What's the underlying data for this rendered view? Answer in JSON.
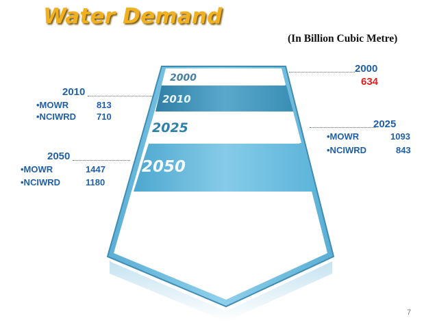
{
  "title": "Water Demand",
  "subtitle": "(In Billion Cubic Metre)",
  "page_number": "7",
  "bands": [
    {
      "label": "2000"
    },
    {
      "label": "2010"
    },
    {
      "label": "2025"
    },
    {
      "label": "2050"
    }
  ],
  "callouts": {
    "y2000": {
      "year": "2000",
      "value": "634"
    },
    "y2010": {
      "year": "2010",
      "rows": [
        {
          "name": "•MOWR",
          "value": "813"
        },
        {
          "name": "•NCIWRD",
          "value": "710"
        }
      ]
    },
    "y2025": {
      "year": "2025",
      "rows": [
        {
          "name": "•MOWR",
          "value": "1093"
        },
        {
          "name": "•NCIWRD",
          "value": "843"
        }
      ]
    },
    "y2050": {
      "year": "2050",
      "rows": [
        {
          "name": "•MOWR",
          "value": "1447"
        },
        {
          "name": "•NCIWRD",
          "value": "1180"
        }
      ]
    }
  },
  "colors": {
    "band_dark": "#3a8fb5",
    "band_light": "#7cc6e6",
    "title": "#f0b020",
    "text_blue": "#1f5fa8",
    "highlight": "#e02020"
  }
}
